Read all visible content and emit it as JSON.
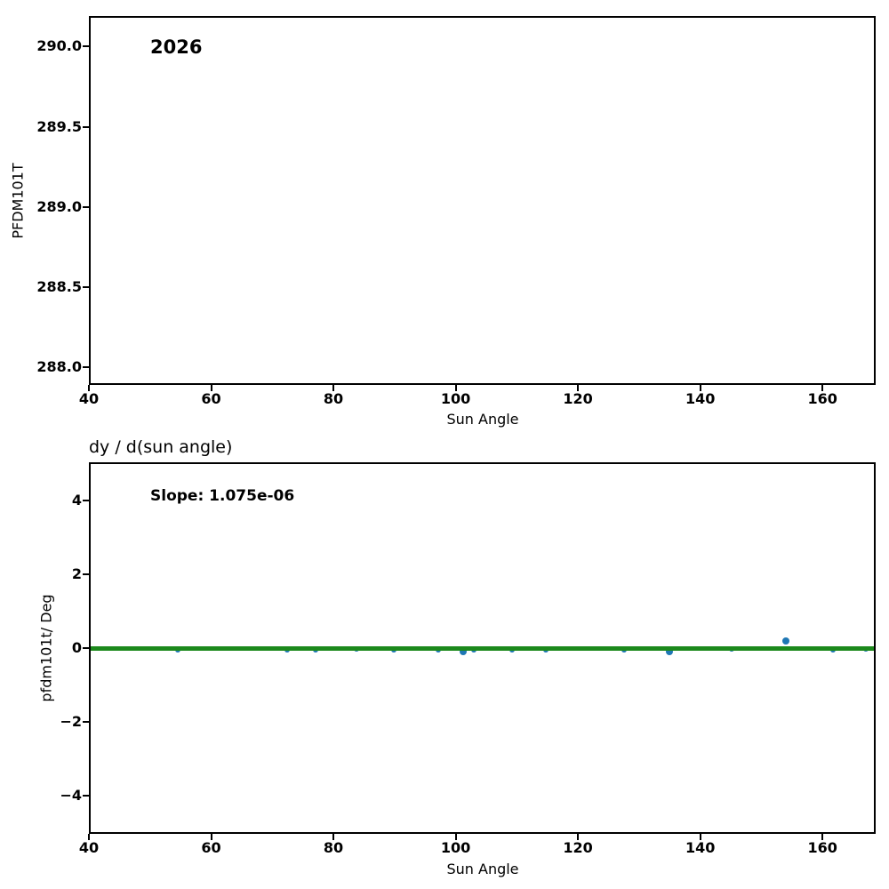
{
  "colors": {
    "scatter_point": "#1f77b4",
    "fit_line": "#1c891c",
    "axis": "#000000",
    "background": "#ffffff"
  },
  "chart_data": [
    {
      "type": "scatter",
      "annotation": "2026",
      "annotation_pos": {
        "x": 50,
        "y": 290.0
      },
      "xlabel": "Sun Angle",
      "ylabel": "PFDM101T",
      "xlim": [
        40,
        168.7
      ],
      "ylim": [
        287.89,
        290.19
      ],
      "xticks": {
        "values": [
          40,
          60,
          80,
          100,
          120,
          140,
          160
        ],
        "labels": [
          "40",
          "60",
          "80",
          "100",
          "120",
          "140",
          "160"
        ]
      },
      "yticks": {
        "values": [
          290.0,
          289.5,
          289.0,
          288.5,
          288.0
        ],
        "labels": [
          "290.0",
          "289.5",
          "289.0",
          "288.5",
          "288.0"
        ]
      },
      "grid": false,
      "points": []
    },
    {
      "type": "scatter",
      "title": "dy / d(sun angle)",
      "annotation": "Slope: 1.075e-06",
      "annotation_pos": {
        "x": 50,
        "y": 4.15
      },
      "xlabel": "Sun Angle",
      "ylabel": "pfdm101t/ Deg",
      "xlim": [
        40,
        168.7
      ],
      "ylim": [
        -5.05,
        5.05
      ],
      "xticks": {
        "values": [
          40,
          60,
          80,
          100,
          120,
          140,
          160
        ],
        "labels": [
          "40",
          "60",
          "80",
          "100",
          "120",
          "140",
          "160"
        ]
      },
      "yticks": {
        "values": [
          4,
          2,
          0,
          -2,
          -4
        ],
        "labels": [
          "4",
          "2",
          "0",
          "−2",
          "−4"
        ]
      },
      "grid": false,
      "fit_line": {
        "y": 0,
        "x0": 40,
        "x1": 168.7
      },
      "points": [
        {
          "x": 54.5,
          "y": -0.05,
          "r": 3
        },
        {
          "x": 72.4,
          "y": -0.05,
          "r": 3
        },
        {
          "x": 77.1,
          "y": -0.05,
          "r": 3
        },
        {
          "x": 83.7,
          "y": -0.03,
          "r": 3
        },
        {
          "x": 89.9,
          "y": -0.04,
          "r": 3
        },
        {
          "x": 97.2,
          "y": -0.05,
          "r": 3
        },
        {
          "x": 101.2,
          "y": -0.1,
          "r": 4
        },
        {
          "x": 103.0,
          "y": -0.06,
          "r": 3
        },
        {
          "x": 109.2,
          "y": -0.04,
          "r": 3
        },
        {
          "x": 114.8,
          "y": -0.05,
          "r": 3
        },
        {
          "x": 127.6,
          "y": -0.04,
          "r": 3
        },
        {
          "x": 135.0,
          "y": -0.1,
          "r": 4
        },
        {
          "x": 145.2,
          "y": -0.02,
          "r": 3
        },
        {
          "x": 154.0,
          "y": 0.19,
          "r": 4
        },
        {
          "x": 161.7,
          "y": -0.05,
          "r": 3
        },
        {
          "x": 167.1,
          "y": -0.03,
          "r": 3
        }
      ]
    }
  ]
}
